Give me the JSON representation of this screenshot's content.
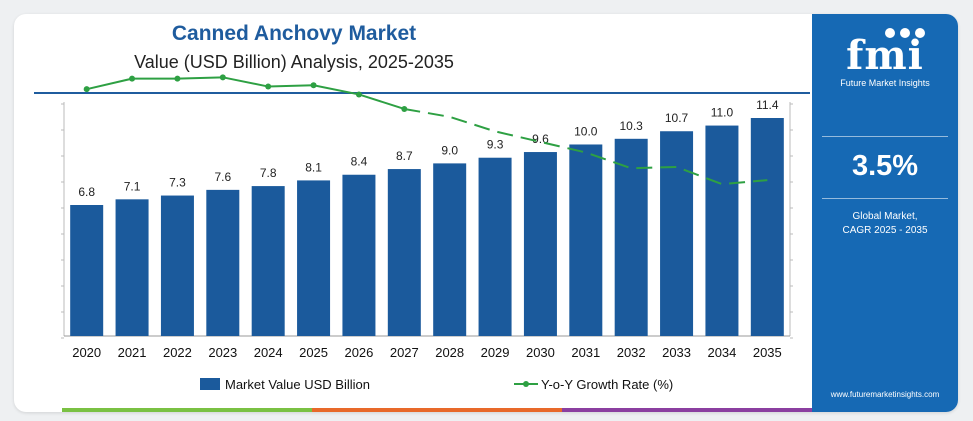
{
  "header": {
    "title": "Canned Anchovy Market",
    "subtitle": "Value (USD Billion) Analysis, 2025-2035"
  },
  "side_panel": {
    "logo_text": "fmi",
    "logo_subtitle": "Future Market Insights",
    "cagr_value": "3.5%",
    "cagr_label_line1": "Global Market,",
    "cagr_label_line2": "CAGR 2025 - 2035",
    "website": "www.futuremarketinsights.com"
  },
  "colors": {
    "bar": "#1b5a9c",
    "line": "#2ea043",
    "title": "#1f5c9e",
    "side_panel": "#1669b4",
    "accent_strip": [
      "#7ac143",
      "#e8692a",
      "#8b3fa0"
    ]
  },
  "chart_data": {
    "type": "bar",
    "categories": [
      "2020",
      "2021",
      "2022",
      "2023",
      "2024",
      "2025",
      "2026",
      "2027",
      "2028",
      "2029",
      "2030",
      "2031",
      "2032",
      "2033",
      "2034",
      "2035"
    ],
    "series": [
      {
        "name": "Market Value USD Billion",
        "type": "bar",
        "values": [
          6.8,
          7.1,
          7.3,
          7.6,
          7.8,
          8.1,
          8.4,
          8.7,
          9.0,
          9.3,
          9.6,
          10.0,
          10.3,
          10.7,
          11.0,
          11.4
        ],
        "labels": [
          "6.8",
          "7.1",
          "7.3",
          "7.6",
          "7.8",
          "8.1",
          "8.4",
          "8.7",
          "9.0",
          "9.3",
          "9.6",
          "10.0",
          "10.3",
          "10.7",
          "11.0",
          "11.4"
        ]
      },
      {
        "name": "Y-o-Y Growth Rate (%)",
        "type": "line",
        "values": [
          4.4,
          4.8,
          4.8,
          4.85,
          4.5,
          4.55,
          4.2,
          3.65,
          3.35,
          2.8,
          2.4,
          2.0,
          1.4,
          1.45,
          0.8,
          0.95
        ],
        "dashed_from_index": 7
      }
    ],
    "ylim": [
      0,
      12
    ],
    "growth_ylim": [
      -5,
      6
    ],
    "legend_position": "bottom",
    "grid": false
  }
}
